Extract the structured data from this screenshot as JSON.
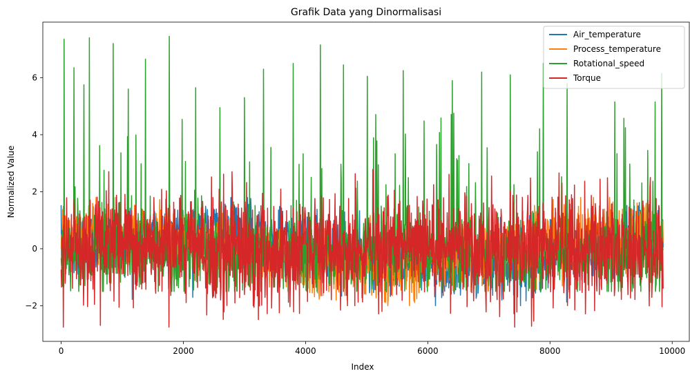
{
  "chart_data": {
    "type": "line",
    "title": "Grafik Data yang Dinormalisasi",
    "xlabel": "Index",
    "ylabel": "Normalized Value",
    "xlim": [
      -300,
      10280
    ],
    "ylim": [
      -3.25,
      7.95
    ],
    "xticks": [
      0,
      2000,
      4000,
      6000,
      8000,
      10000
    ],
    "xtick_labels": [
      "0",
      "2000",
      "4000",
      "6000",
      "8000",
      "10000"
    ],
    "yticks": [
      -2,
      0,
      2,
      4,
      6
    ],
    "ytick_labels": [
      "−2",
      "0",
      "2",
      "4",
      "6"
    ],
    "grid": false,
    "legend_position": "top-right",
    "n_points": 9856,
    "series": [
      {
        "name": "Air_temperature",
        "color": "#1f77b4",
        "range": [
          -2.0,
          1.8
        ],
        "stats": {
          "mean": 0.0,
          "std": 1.0,
          "min": -2.0,
          "max": 1.8
        }
      },
      {
        "name": "Process_temperature",
        "color": "#ff7f0e",
        "range": [
          -2.0,
          1.8
        ],
        "stats": {
          "mean": 0.0,
          "std": 1.0,
          "min": -2.0,
          "max": 1.8
        }
      },
      {
        "name": "Rotational_speed",
        "color": "#2ca02c",
        "range": [
          -1.5,
          7.45
        ],
        "stats": {
          "mean": 0.0,
          "std": 1.0,
          "min": -1.5,
          "max": 7.45
        },
        "peaks": [
          {
            "x": 50,
            "y": 7.35
          },
          {
            "x": 210,
            "y": 6.35
          },
          {
            "x": 370,
            "y": 5.75
          },
          {
            "x": 460,
            "y": 7.4
          },
          {
            "x": 850,
            "y": 7.2
          },
          {
            "x": 1100,
            "y": 5.6
          },
          {
            "x": 1380,
            "y": 6.65
          },
          {
            "x": 1770,
            "y": 7.45
          },
          {
            "x": 2200,
            "y": 5.65
          },
          {
            "x": 2600,
            "y": 4.95
          },
          {
            "x": 3000,
            "y": 5.3
          },
          {
            "x": 3310,
            "y": 6.3
          },
          {
            "x": 3800,
            "y": 6.5
          },
          {
            "x": 4240,
            "y": 7.15
          },
          {
            "x": 4620,
            "y": 6.45
          },
          {
            "x": 5010,
            "y": 6.05
          },
          {
            "x": 5600,
            "y": 6.25
          },
          {
            "x": 6400,
            "y": 5.9
          },
          {
            "x": 6880,
            "y": 6.2
          },
          {
            "x": 7350,
            "y": 6.1
          },
          {
            "x": 7890,
            "y": 6.5
          },
          {
            "x": 8280,
            "y": 5.8
          },
          {
            "x": 9060,
            "y": 5.15
          },
          {
            "x": 9720,
            "y": 5.15
          },
          {
            "x": 9830,
            "y": 6.15
          }
        ]
      },
      {
        "name": "Torque",
        "color": "#d62728",
        "range": [
          -2.75,
          2.75
        ],
        "stats": {
          "mean": 0.0,
          "std": 1.0,
          "min": -2.75,
          "max": 2.75
        }
      }
    ]
  }
}
